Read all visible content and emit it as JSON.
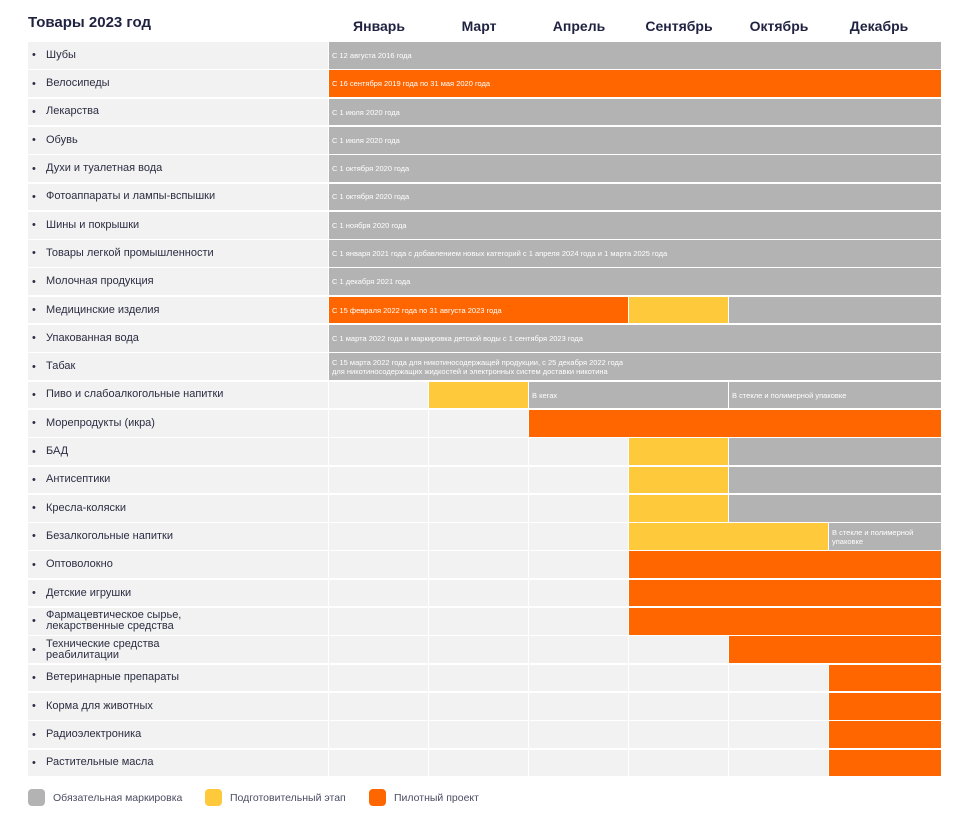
{
  "colors": {
    "mandatory": "#b3b3b3",
    "prep": "#ffc93c",
    "pilot": "#ff6600",
    "empty": "#f2f2f2"
  },
  "chart_data": {
    "type": "gantt",
    "title": "Товары 2023 год",
    "months": [
      "Январь",
      "Март",
      "Апрель",
      "Сентябрь",
      "Октябрь",
      "Декабрь"
    ],
    "legend": [
      {
        "key": "mandatory",
        "label": "Обязательная маркировка"
      },
      {
        "key": "prep",
        "label": "Подготовительный этап"
      },
      {
        "key": "pilot",
        "label": "Пилотный проект"
      }
    ],
    "rows": [
      {
        "label": "Шубы",
        "segments": [
          {
            "start": 0,
            "end": 6,
            "type": "mandatory",
            "text": "С 12 августа 2016 года"
          }
        ]
      },
      {
        "label": "Велосипеды",
        "segments": [
          {
            "start": 0,
            "end": 6,
            "type": "pilot",
            "text": "С 16 сентября 2019 года по 31 мая 2020 года"
          }
        ]
      },
      {
        "label": "Лекарства",
        "segments": [
          {
            "start": 0,
            "end": 6,
            "type": "mandatory",
            "text": "С 1 июля 2020 года"
          }
        ]
      },
      {
        "label": "Обувь",
        "segments": [
          {
            "start": 0,
            "end": 6,
            "type": "mandatory",
            "text": "С 1 июля 2020 года"
          }
        ]
      },
      {
        "label": "Духи и туалетная вода",
        "segments": [
          {
            "start": 0,
            "end": 6,
            "type": "mandatory",
            "text": "С 1 октября 2020 года"
          }
        ]
      },
      {
        "label": "Фотоаппараты и лампы-вспышки",
        "segments": [
          {
            "start": 0,
            "end": 6,
            "type": "mandatory",
            "text": "С 1 октября 2020 года"
          }
        ]
      },
      {
        "label": "Шины и покрышки",
        "segments": [
          {
            "start": 0,
            "end": 6,
            "type": "mandatory",
            "text": "С 1 ноября 2020 года"
          }
        ]
      },
      {
        "label": "Товары легкой промышленности",
        "segments": [
          {
            "start": 0,
            "end": 6,
            "type": "mandatory",
            "text": "С 1 января 2021 года с добавлением новых категорий с 1 апреля 2024 года и 1 марта 2025 года"
          }
        ]
      },
      {
        "label": "Молочная продукция",
        "segments": [
          {
            "start": 0,
            "end": 6,
            "type": "mandatory",
            "text": "С 1 декабря 2021 года"
          }
        ]
      },
      {
        "label": "Медицинские изделия",
        "segments": [
          {
            "start": 0,
            "end": 3,
            "type": "pilot",
            "text": "С 15 февраля 2022 года по 31 августа 2023 года"
          },
          {
            "start": 3,
            "end": 4,
            "type": "prep",
            "text": ""
          },
          {
            "start": 4,
            "end": 6,
            "type": "mandatory",
            "text": ""
          }
        ]
      },
      {
        "label": "Упакованная вода",
        "segments": [
          {
            "start": 0,
            "end": 6,
            "type": "mandatory",
            "text": "С 1 марта 2022 года и маркировка детской воды с 1 сентября 2023 года"
          }
        ]
      },
      {
        "label": "Табак",
        "segments": [
          {
            "start": 0,
            "end": 6,
            "type": "mandatory",
            "text": "С 15 марта 2022 года для никотиносодержащей продукции, с 25 декабря 2022 года\nдля никотиносодержащих жидкостей и электронных систем доставки никотина"
          }
        ]
      },
      {
        "label": "Пиво и слабоалкогольные напитки",
        "segments": [
          {
            "start": 1,
            "end": 2,
            "type": "prep",
            "text": ""
          },
          {
            "start": 2,
            "end": 4,
            "type": "mandatory",
            "text": "В кегах"
          },
          {
            "start": 4,
            "end": 6,
            "type": "mandatory",
            "text": "В стекле и полимерной упаковке"
          }
        ]
      },
      {
        "label": "Морепродукты (икра)",
        "segments": [
          {
            "start": 2,
            "end": 6,
            "type": "pilot",
            "text": ""
          }
        ]
      },
      {
        "label": "БАД",
        "segments": [
          {
            "start": 3,
            "end": 4,
            "type": "prep",
            "text": ""
          },
          {
            "start": 4,
            "end": 6,
            "type": "mandatory",
            "text": ""
          }
        ]
      },
      {
        "label": "Антисептики",
        "segments": [
          {
            "start": 3,
            "end": 4,
            "type": "prep",
            "text": ""
          },
          {
            "start": 4,
            "end": 6,
            "type": "mandatory",
            "text": ""
          }
        ]
      },
      {
        "label": "Кресла-коляски",
        "segments": [
          {
            "start": 3,
            "end": 4,
            "type": "prep",
            "text": ""
          },
          {
            "start": 4,
            "end": 6,
            "type": "mandatory",
            "text": ""
          }
        ]
      },
      {
        "label": "Безалкогольные напитки",
        "segments": [
          {
            "start": 3,
            "end": 5,
            "type": "prep",
            "text": ""
          },
          {
            "start": 5,
            "end": 6,
            "type": "mandatory",
            "text": "В стекле и полимерной\nупаковке"
          }
        ]
      },
      {
        "label": "Оптоволокно",
        "segments": [
          {
            "start": 3,
            "end": 6,
            "type": "pilot",
            "text": ""
          }
        ]
      },
      {
        "label": "Детские игрушки",
        "segments": [
          {
            "start": 3,
            "end": 6,
            "type": "pilot",
            "text": ""
          }
        ]
      },
      {
        "label": "Фармацевтическое сырье,\nлекарственные средства",
        "segments": [
          {
            "start": 3,
            "end": 6,
            "type": "pilot",
            "text": ""
          }
        ]
      },
      {
        "label": "Технические средства\nреабилитации",
        "segments": [
          {
            "start": 4,
            "end": 6,
            "type": "pilot",
            "text": ""
          }
        ]
      },
      {
        "label": "Ветеринарные препараты",
        "segments": [
          {
            "start": 5,
            "end": 6,
            "type": "pilot",
            "text": ""
          }
        ]
      },
      {
        "label": "Корма для животных",
        "segments": [
          {
            "start": 5,
            "end": 6,
            "type": "pilot",
            "text": ""
          }
        ]
      },
      {
        "label": "Радиоэлектроника",
        "segments": [
          {
            "start": 5,
            "end": 6,
            "type": "pilot",
            "text": ""
          }
        ]
      },
      {
        "label": "Растительные масла",
        "segments": [
          {
            "start": 5,
            "end": 6,
            "type": "pilot",
            "text": ""
          }
        ]
      }
    ]
  }
}
